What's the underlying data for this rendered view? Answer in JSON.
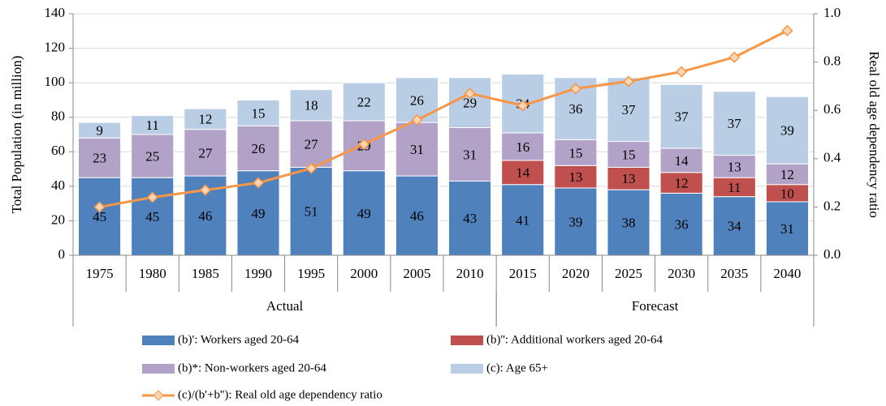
{
  "chart_data": {
    "type": "bar",
    "y_label": "Total Population (in million)",
    "y2_label": "Real old age dependency ratio",
    "categories": [
      "1975",
      "1980",
      "1985",
      "1990",
      "1995",
      "2000",
      "2005",
      "2010",
      "2015",
      "2020",
      "2025",
      "2030",
      "2035",
      "2040"
    ],
    "groups": [
      {
        "label": "Actual",
        "from": "1975",
        "to": "2010"
      },
      {
        "label": "Forecast",
        "from": "2015",
        "to": "2040"
      }
    ],
    "series": [
      {
        "name": "(b)': Workers aged 20-64",
        "color": "#4f81bd",
        "label_color": "#ffffff",
        "values": [
          45,
          45,
          46,
          49,
          51,
          49,
          46,
          43,
          41,
          39,
          38,
          36,
          34,
          31
        ]
      },
      {
        "name": "(b)'': Additional workers aged 20-64",
        "color": "#c0504d",
        "label_color": "#ffffff",
        "values": [
          null,
          null,
          null,
          null,
          null,
          null,
          null,
          null,
          14,
          13,
          13,
          12,
          11,
          10
        ]
      },
      {
        "name": "(b)*: Non-workers aged 20-64",
        "color": "#b3a2c7",
        "label_color": "#000000",
        "values": [
          23,
          25,
          27,
          26,
          27,
          29,
          31,
          31,
          16,
          15,
          15,
          14,
          13,
          12
        ]
      },
      {
        "name": "(c): Age 65+",
        "color": "#b9cde5",
        "label_color": "#000000",
        "values": [
          9,
          11,
          12,
          15,
          18,
          22,
          26,
          29,
          34,
          36,
          37,
          37,
          37,
          39
        ]
      },
      {
        "name": "(c)/(b'+b''): Real old age dependency ratio",
        "type": "line",
        "axis": "y2",
        "color": "#f79646",
        "marker_color": "#fcd5b4",
        "values": [
          0.2,
          0.24,
          0.27,
          0.3,
          0.36,
          0.46,
          0.56,
          0.67,
          0.62,
          0.69,
          0.72,
          0.76,
          0.82,
          0.93
        ]
      }
    ],
    "ylim": [
      0,
      140
    ],
    "yticks": [
      0,
      20,
      40,
      60,
      80,
      100,
      120,
      140
    ],
    "y2lim": [
      0,
      1
    ],
    "y2ticks": [
      {
        "value": 0,
        "label": "0.0"
      },
      {
        "value": 0.2,
        "label": "0.2"
      },
      {
        "value": 0.4,
        "label": "0.4"
      },
      {
        "value": 0.6,
        "label": "0.6"
      },
      {
        "value": 0.8,
        "label": "0.8"
      },
      {
        "value": 1,
        "label": "1.0"
      }
    ],
    "grid": true
  }
}
